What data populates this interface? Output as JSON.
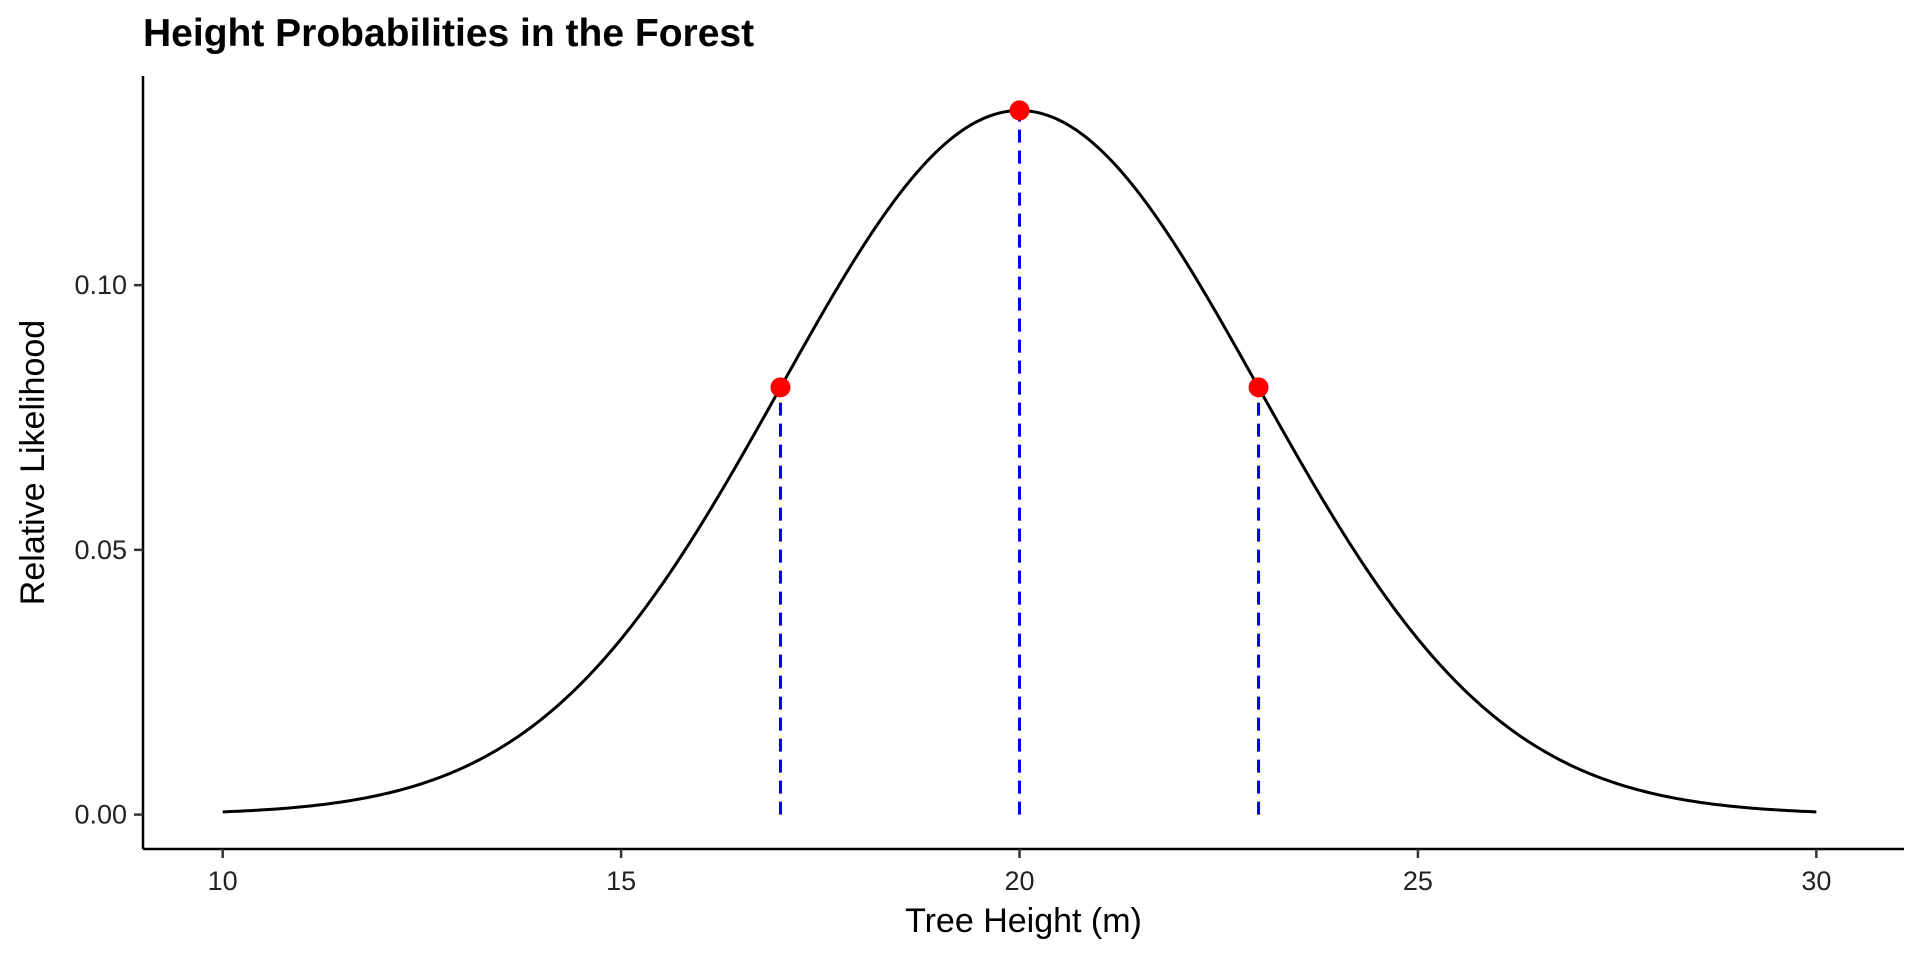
{
  "chart_data": {
    "type": "line",
    "title": "Height Probabilities in the Forest",
    "xlabel": "Tree Height (m)",
    "ylabel": "Relative Likelihood",
    "xlim": [
      9,
      31.1
    ],
    "ylim": [
      -0.0065,
      0.1395
    ],
    "x_ticks": [
      10,
      15,
      20,
      25,
      30
    ],
    "x_tick_labels": [
      "10",
      "15",
      "20",
      "25",
      "30"
    ],
    "y_ticks": [
      0,
      0.05,
      0.1
    ],
    "y_tick_labels": [
      "0.00",
      "0.05",
      "0.10"
    ],
    "grid": false,
    "legend": "none",
    "series": [
      {
        "kind": "curve",
        "distribution": "normal",
        "mean": 20,
        "sd": 3,
        "x_range": [
          10,
          30
        ],
        "color": "#000000"
      },
      {
        "kind": "points",
        "color": "#ff0000",
        "points": [
          {
            "x": 17,
            "y": 0.0807
          },
          {
            "x": 20,
            "y": 0.133
          },
          {
            "x": 23,
            "y": 0.0807
          }
        ]
      },
      {
        "kind": "dashed-verticals",
        "color": "#0000ee",
        "x": [
          17,
          20,
          23
        ]
      }
    ]
  }
}
